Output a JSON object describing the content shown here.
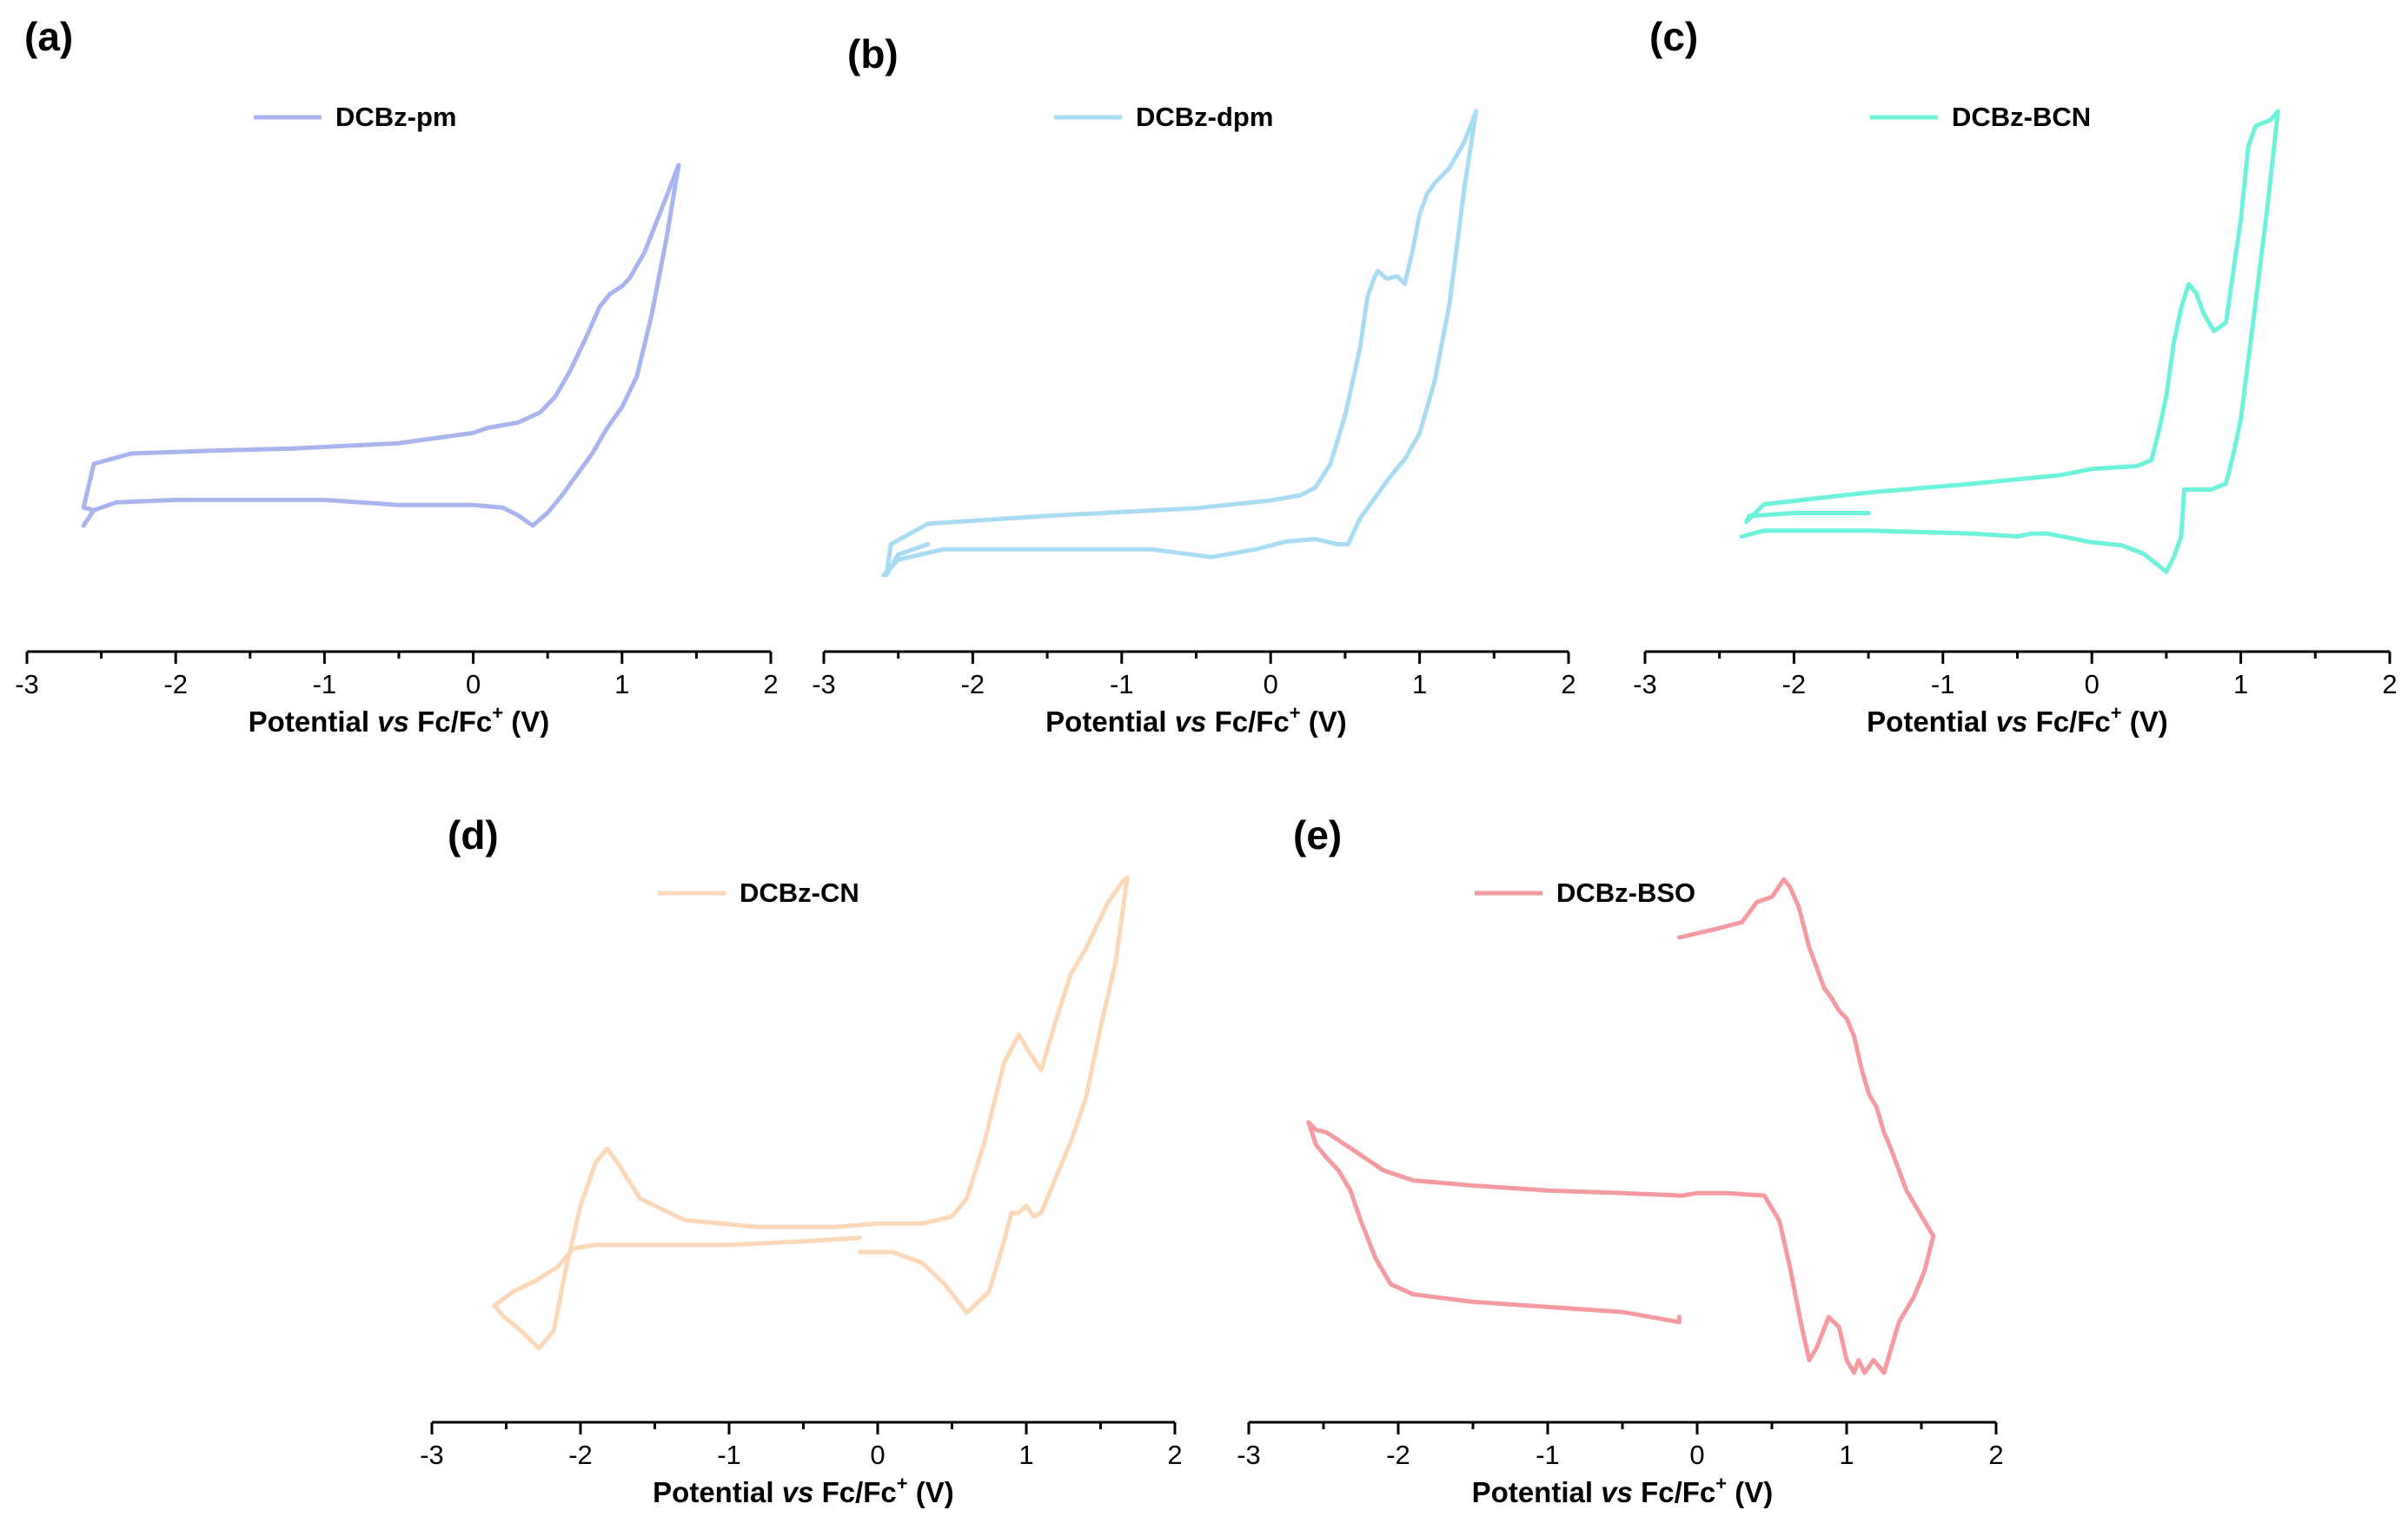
{
  "chart_data": [
    {
      "type": "line",
      "panel_label": "(a)",
      "series": [
        {
          "name": "DCBz-pm",
          "color": "#aab4ee",
          "x": [
            -2.55,
            -2.62,
            -2.55,
            -2.3,
            -1.8,
            -1.2,
            -0.5,
            0.0,
            0.1,
            0.3,
            0.45,
            0.55,
            0.65,
            0.75,
            0.85,
            0.92,
            1.0,
            1.05,
            1.15,
            1.3,
            1.38,
            1.3,
            1.2,
            1.1,
            1.0,
            0.9,
            0.8,
            0.7,
            0.6,
            0.5,
            0.4,
            0.3,
            0.2,
            0.0,
            -0.5,
            -1.0,
            -1.5,
            -2.0,
            -2.4,
            -2.55,
            -2.62
          ],
          "y": [
            0.06,
            0.07,
            0.24,
            0.28,
            0.29,
            0.3,
            0.32,
            0.36,
            0.38,
            0.4,
            0.44,
            0.5,
            0.6,
            0.72,
            0.85,
            0.9,
            0.93,
            0.96,
            1.06,
            1.28,
            1.4,
            1.12,
            0.82,
            0.58,
            0.46,
            0.38,
            0.28,
            0.2,
            0.12,
            0.05,
            0.0,
            0.04,
            0.07,
            0.08,
            0.08,
            0.1,
            0.1,
            0.1,
            0.09,
            0.06,
            0.0
          ]
        }
      ],
      "xlabel": "Potential vs Fc/Fc+ (V)",
      "xlabel_parts": {
        "before": "Potential ",
        "italic": "vs",
        "after": " Fc/Fc",
        "sup": "+",
        "tail": " (V)"
      },
      "xticks": [
        "-3",
        "-2",
        "-1",
        "0",
        "1",
        "2"
      ],
      "xlim": [
        -3,
        2
      ],
      "legend": "top-center"
    },
    {
      "type": "line",
      "panel_label": "(b)",
      "series": [
        {
          "name": "DCBz-dpm",
          "color": "#a8dcf4",
          "x": [
            -2.3,
            -2.5,
            -2.58,
            -2.55,
            -2.3,
            -1.5,
            -0.5,
            0.0,
            0.2,
            0.3,
            0.4,
            0.5,
            0.6,
            0.65,
            0.7,
            0.72,
            0.78,
            0.85,
            0.9,
            0.95,
            1.0,
            1.05,
            1.1,
            1.2,
            1.3,
            1.38,
            1.3,
            1.2,
            1.1,
            1.0,
            0.9,
            0.8,
            0.7,
            0.6,
            0.52,
            0.45,
            0.3,
            0.1,
            -0.1,
            -0.4,
            -0.8,
            -1.5,
            -2.2,
            -2.5,
            -2.6
          ],
          "y": [
            0.12,
            0.08,
            0.0,
            0.12,
            0.2,
            0.23,
            0.26,
            0.29,
            0.31,
            0.34,
            0.43,
            0.62,
            0.88,
            1.08,
            1.16,
            1.18,
            1.15,
            1.16,
            1.13,
            1.25,
            1.4,
            1.48,
            1.52,
            1.58,
            1.68,
            1.8,
            1.5,
            1.05,
            0.75,
            0.55,
            0.45,
            0.38,
            0.3,
            0.22,
            0.12,
            0.12,
            0.14,
            0.13,
            0.1,
            0.07,
            0.1,
            0.1,
            0.1,
            0.06,
            0.0
          ]
        }
      ],
      "xlabel": "Potential vs Fc/Fc+ (V)",
      "xlabel_parts": {
        "before": "Potential ",
        "italic": "vs",
        "after": " Fc/Fc",
        "sup": "+",
        "tail": " (V)"
      },
      "xticks": [
        "-3",
        "-2",
        "-1",
        "0",
        "1",
        "2"
      ],
      "xlim": [
        -3,
        2
      ],
      "legend": "top-center"
    },
    {
      "type": "line",
      "panel_label": "(c)",
      "series": [
        {
          "name": "DCBz-BCN",
          "color": "#6ef2dc",
          "x": [
            -1.5,
            -2.0,
            -2.3,
            -2.32,
            -2.2,
            -1.5,
            -0.8,
            -0.2,
            0.0,
            0.3,
            0.4,
            0.45,
            0.5,
            0.55,
            0.6,
            0.65,
            0.7,
            0.75,
            0.82,
            0.9,
            1.0,
            1.05,
            1.1,
            1.2,
            1.25,
            1.18,
            1.1,
            1.0,
            0.95,
            0.9,
            0.8,
            0.62,
            0.6,
            0.55,
            0.5,
            0.45,
            0.35,
            0.2,
            0.0,
            -0.3,
            -0.4,
            -0.5,
            -0.8,
            -1.5,
            -2.2,
            -2.35
          ],
          "y": [
            0.2,
            0.2,
            0.19,
            0.17,
            0.23,
            0.27,
            0.3,
            0.33,
            0.35,
            0.36,
            0.38,
            0.48,
            0.6,
            0.78,
            0.9,
            0.98,
            0.95,
            0.88,
            0.82,
            0.85,
            1.2,
            1.45,
            1.52,
            1.54,
            1.57,
            1.25,
            0.92,
            0.52,
            0.4,
            0.3,
            0.28,
            0.28,
            0.12,
            0.05,
            0.0,
            0.02,
            0.06,
            0.09,
            0.1,
            0.13,
            0.13,
            0.12,
            0.13,
            0.14,
            0.14,
            0.12
          ]
        }
      ],
      "xlabel": "Potential vs Fc/Fc+ (V)",
      "xlabel_parts": {
        "before": "Potential ",
        "italic": "vs",
        "after": " Fc/Fc",
        "sup": "+",
        "tail": " (V)"
      },
      "xticks": [
        "-3",
        "-2",
        "-1",
        "0",
        "1",
        "2"
      ],
      "xlim": [
        -3,
        2
      ],
      "legend": "top-center"
    },
    {
      "type": "line",
      "panel_label": "(d)",
      "series": [
        {
          "name": "DCBz-CN",
          "color": "#fcd8b8",
          "x": [
            -0.12,
            -0.5,
            -1.0,
            -1.5,
            -1.9,
            -2.05,
            -2.15,
            -2.3,
            -2.45,
            -2.58,
            -2.52,
            -2.4,
            -2.28,
            -2.18,
            -2.1,
            -2.0,
            -1.9,
            -1.82,
            -1.75,
            -1.6,
            -1.3,
            -0.8,
            -0.3,
            0.0,
            0.3,
            0.5,
            0.6,
            0.72,
            0.85,
            0.95,
            1.02,
            1.1,
            1.2,
            1.3,
            1.4,
            1.55,
            1.65,
            1.68,
            1.6,
            1.5,
            1.4,
            1.3,
            1.2,
            1.1,
            1.05,
            1.0,
            0.95,
            0.9,
            0.85,
            0.75,
            0.6,
            0.45,
            0.3,
            0.1,
            -0.12
          ],
          "y": [
            0.31,
            0.3,
            0.29,
            0.29,
            0.29,
            0.28,
            0.23,
            0.19,
            0.16,
            0.12,
            0.09,
            0.05,
            0.0,
            0.05,
            0.22,
            0.4,
            0.52,
            0.56,
            0.52,
            0.42,
            0.36,
            0.34,
            0.34,
            0.35,
            0.35,
            0.37,
            0.42,
            0.58,
            0.8,
            0.88,
            0.83,
            0.78,
            0.92,
            1.05,
            1.12,
            1.25,
            1.31,
            1.32,
            1.08,
            0.9,
            0.7,
            0.58,
            0.48,
            0.38,
            0.37,
            0.4,
            0.38,
            0.38,
            0.3,
            0.16,
            0.1,
            0.18,
            0.24,
            0.27,
            0.27
          ]
        }
      ],
      "xlabel": "Potential vs Fc/Fc+ (V)",
      "xlabel_parts": {
        "before": "Potential ",
        "italic": "vs",
        "after": " Fc/Fc",
        "sup": "+",
        "tail": " (V)"
      },
      "xticks": [
        "-3",
        "-2",
        "-1",
        "0",
        "1",
        "2"
      ],
      "xlim": [
        -3,
        2
      ],
      "legend": "top-center"
    },
    {
      "type": "line",
      "panel_label": "(e)",
      "series": [
        {
          "name": "DCBz-BSO",
          "color": "#f49aa0",
          "x": [
            -0.12,
            -0.12,
            -0.5,
            -1.0,
            -1.5,
            -1.9,
            -2.05,
            -2.15,
            -2.25,
            -2.32,
            -2.4,
            -2.48,
            -2.55,
            -2.6,
            -2.55,
            -2.48,
            -2.3,
            -2.1,
            -1.9,
            -1.5,
            -1.0,
            -0.5,
            -0.1,
            0.0,
            0.2,
            0.45,
            0.55,
            0.62,
            0.7,
            0.75,
            0.8,
            0.88,
            0.95,
            1.0,
            1.05,
            1.08,
            1.12,
            1.18,
            1.25,
            1.3,
            1.35,
            1.45,
            1.52,
            1.58,
            1.52,
            1.4,
            1.3,
            1.25,
            1.2,
            1.15,
            1.1,
            1.05,
            1.0,
            0.95,
            0.9,
            0.85,
            0.8,
            0.75,
            0.68,
            0.62,
            0.58,
            0.5,
            0.4,
            0.3,
            0.1,
            -0.12
          ],
          "y": [
            0.22,
            0.2,
            0.24,
            0.26,
            0.28,
            0.31,
            0.35,
            0.45,
            0.6,
            0.72,
            0.8,
            0.85,
            0.9,
            0.99,
            0.96,
            0.95,
            0.88,
            0.8,
            0.76,
            0.74,
            0.72,
            0.71,
            0.7,
            0.71,
            0.71,
            0.7,
            0.6,
            0.42,
            0.18,
            0.05,
            0.1,
            0.22,
            0.18,
            0.05,
            0.0,
            0.05,
            0.0,
            0.05,
            0.0,
            0.1,
            0.2,
            0.3,
            0.4,
            0.54,
            0.6,
            0.72,
            0.88,
            0.95,
            1.05,
            1.1,
            1.2,
            1.33,
            1.4,
            1.43,
            1.48,
            1.52,
            1.6,
            1.68,
            1.84,
            1.92,
            1.95,
            1.88,
            1.86,
            1.78,
            1.75,
            1.72
          ]
        }
      ],
      "xlabel": "Potential vs Fc/Fc+ (V)",
      "xlabel_parts": {
        "before": "Potential ",
        "italic": "vs",
        "after": " Fc/Fc",
        "sup": "+",
        "tail": " (V)"
      },
      "xticks": [
        "-3",
        "-2",
        "-1",
        "0",
        "1",
        "2"
      ],
      "xlim": [
        -3,
        2
      ],
      "legend": "top-center"
    }
  ]
}
